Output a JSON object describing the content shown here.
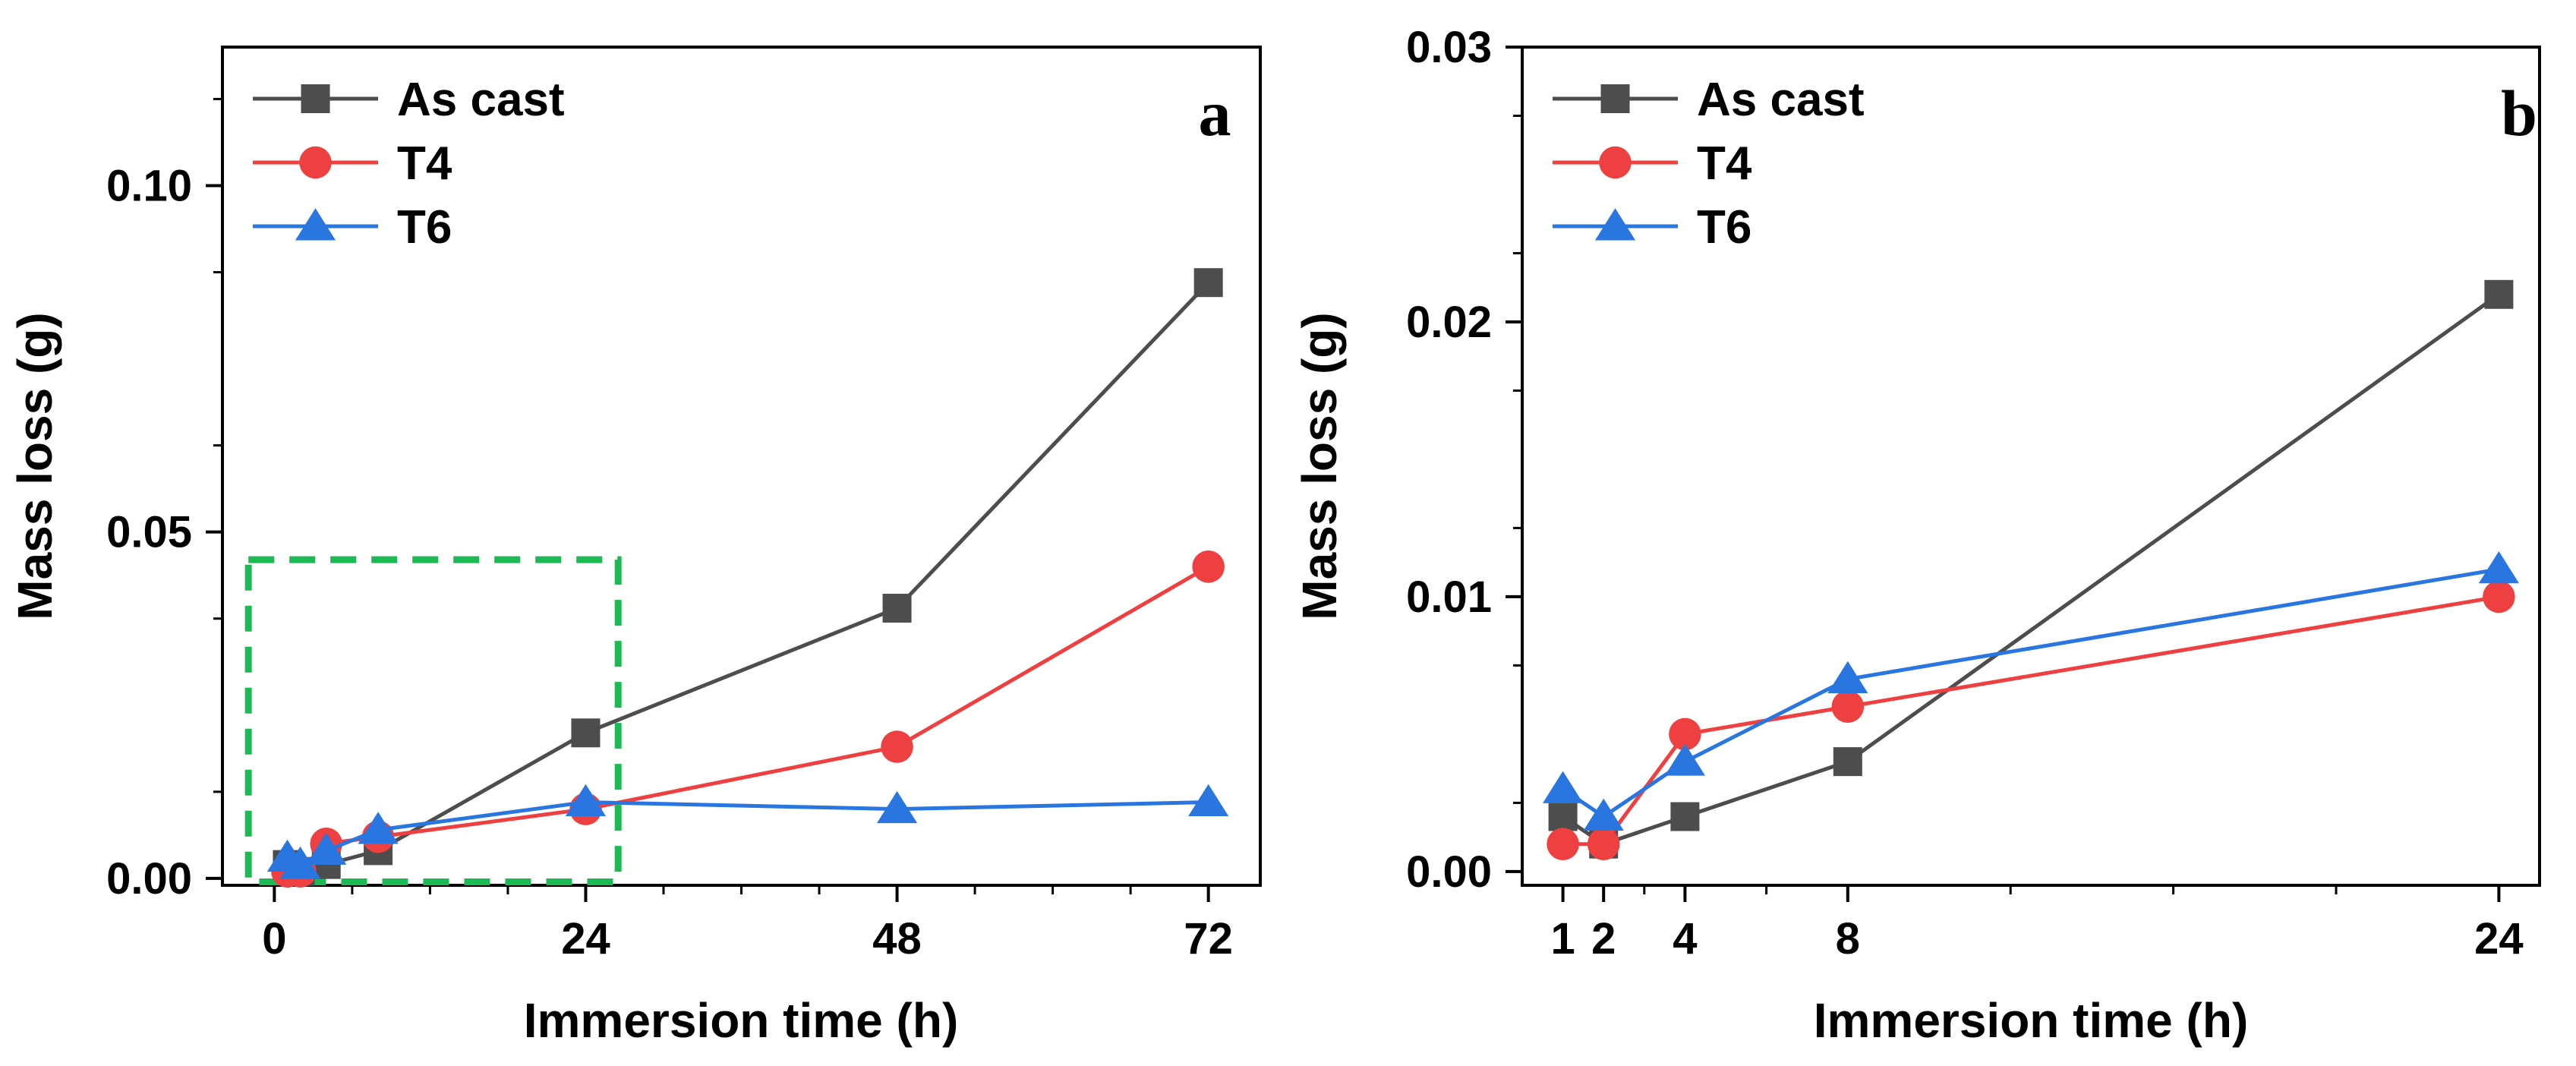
{
  "chart_data": [
    {
      "panel": "a",
      "type": "line",
      "xlabel": "Immersion time (h)",
      "ylabel": "Mass loss (g)",
      "xlim": [
        -4,
        76
      ],
      "ylim": [
        -0.001,
        0.12
      ],
      "xticks": [
        0,
        24,
        48,
        72
      ],
      "xtick_labels": [
        "0",
        "24",
        "48",
        "72"
      ],
      "yticks": [
        0.0,
        0.05,
        0.1
      ],
      "ytick_labels": [
        "0.00",
        "0.05",
        "0.10"
      ],
      "series": [
        {
          "name": "As cast",
          "marker": "square",
          "color": "#4d4d4d",
          "x": [
            1,
            2,
            4,
            8,
            24,
            48,
            72
          ],
          "y": [
            0.002,
            0.001,
            0.002,
            0.004,
            0.021,
            0.039,
            0.086
          ]
        },
        {
          "name": "T4",
          "marker": "circle",
          "color": "#ee4040",
          "x": [
            1,
            2,
            4,
            8,
            24,
            48,
            72
          ],
          "y": [
            0.001,
            0.001,
            0.005,
            0.006,
            0.01,
            0.019,
            0.045
          ]
        },
        {
          "name": "T6",
          "marker": "triangle",
          "color": "#2a76e0",
          "x": [
            1,
            2,
            4,
            8,
            24,
            48,
            72
          ],
          "y": [
            0.003,
            0.002,
            0.004,
            0.007,
            0.011,
            0.01,
            0.011
          ]
        }
      ],
      "annotation": {
        "type": "dashed-rectangle",
        "color": "#1db954",
        "x_range": [
          -2,
          26.5
        ],
        "y_range": [
          -0.0005,
          0.046
        ]
      },
      "legend_position": "top-left"
    },
    {
      "panel": "b",
      "type": "line",
      "xlabel": "Immersion time (h)",
      "ylabel": "Mass loss (g)",
      "xlim": [
        0,
        25
      ],
      "ylim": [
        -0.0005,
        0.03
      ],
      "xticks": [
        1,
        2,
        4,
        8,
        24
      ],
      "xtick_labels": [
        "1",
        "2",
        "4",
        "8",
        "24"
      ],
      "yticks": [
        0.0,
        0.01,
        0.02,
        0.03
      ],
      "ytick_labels": [
        "0.00",
        "0.01",
        "0.02",
        "0.03"
      ],
      "series": [
        {
          "name": "As cast",
          "marker": "square",
          "color": "#4d4d4d",
          "x": [
            1,
            2,
            4,
            8,
            24
          ],
          "y": [
            0.002,
            0.001,
            0.002,
            0.004,
            0.021
          ]
        },
        {
          "name": "T4",
          "marker": "circle",
          "color": "#ee4040",
          "x": [
            1,
            2,
            4,
            8,
            24
          ],
          "y": [
            0.001,
            0.001,
            0.005,
            0.006,
            0.01
          ]
        },
        {
          "name": "T6",
          "marker": "triangle",
          "color": "#2a76e0",
          "x": [
            1,
            2,
            4,
            8,
            24
          ],
          "y": [
            0.003,
            0.002,
            0.004,
            0.007,
            0.011
          ]
        }
      ],
      "legend_position": "top-left"
    }
  ]
}
